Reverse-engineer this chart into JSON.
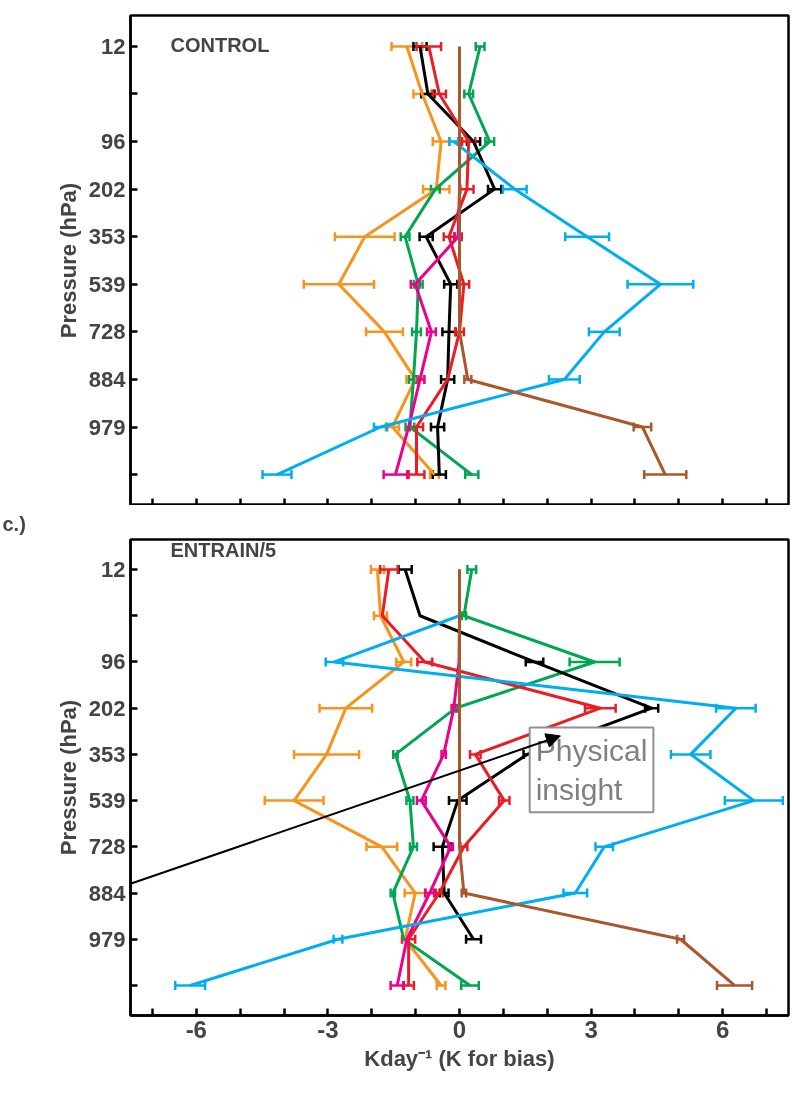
{
  "chart_data": [
    {
      "type": "line",
      "orientation": "horizontal",
      "title": "CONTROL",
      "ylabel": "Pressure (hPa)",
      "tick_labels": "y",
      "marker": "none",
      "line_style": "solid",
      "grid": false,
      "categories": [
        "12",
        null,
        "96",
        "202",
        "353",
        "539",
        "728",
        "884",
        "979",
        null
      ],
      "xlim": [
        -7.5,
        7.5
      ],
      "xticks": [
        {
          "value": -7,
          "label": null
        },
        {
          "value": -6,
          "label": null
        },
        {
          "value": -5,
          "label": null
        },
        {
          "value": -4,
          "label": null
        },
        {
          "value": -3,
          "label": null
        },
        {
          "value": -2,
          "label": null
        },
        {
          "value": -1,
          "label": null
        },
        {
          "value": 0,
          "label": null
        },
        {
          "value": 1,
          "label": null
        },
        {
          "value": 2,
          "label": null
        },
        {
          "value": 3,
          "label": null
        },
        {
          "value": 4,
          "label": null
        },
        {
          "value": 5,
          "label": null
        },
        {
          "value": 6,
          "label": null
        },
        {
          "value": 7,
          "label": null
        }
      ],
      "series": [
        {
          "color": "#f7941d",
          "values": [
            -1.2,
            -0.85,
            -0.42,
            -0.53,
            -2.16,
            -2.75,
            -1.71,
            -1.01,
            -1.53,
            -0.57
          ],
          "errors": [
            0.35,
            0.2,
            0.19,
            0.3,
            0.68,
            0.8,
            0.42,
            0.2,
            0.15,
            0.1
          ]
        },
        {
          "color": "#00a651",
          "values": [
            0.47,
            0.21,
            0.69,
            -0.55,
            -1.24,
            -0.94,
            -0.98,
            -1.05,
            -1.13,
            0.28
          ],
          "errors": [
            0.1,
            0.1,
            0.1,
            0.1,
            0.1,
            0.1,
            0.1,
            0.1,
            0.1,
            0.15
          ]
        },
        {
          "color": "#000000",
          "values": [
            -0.9,
            -0.72,
            0.32,
            0.8,
            -0.76,
            -0.2,
            -0.24,
            -0.27,
            -0.5,
            -0.46
          ],
          "errors": [
            0.15,
            0.15,
            0.15,
            0.15,
            0.15,
            0.15,
            0.15,
            0.15,
            0.15,
            0.15
          ]
        },
        {
          "color": "#ed1c24",
          "values": [
            -0.7,
            -0.46,
            0.21,
            0.17,
            -0.24,
            0.1,
            0.0,
            -0.27,
            -0.98,
            -0.98
          ],
          "errors": [
            0.28,
            0.15,
            0.15,
            0.15,
            0.12,
            0.12,
            0.1,
            null,
            0.15,
            0.18
          ]
        },
        {
          "color": "#ec008c",
          "values": [
            null,
            null,
            0,
            0,
            -0.03,
            -1.01,
            -0.64,
            -0.9,
            -1.16,
            -1.46
          ],
          "errors": [
            null,
            null,
            null,
            null,
            0.08,
            0.1,
            0.1,
            0.1,
            null,
            0.27
          ]
        },
        {
          "color": "#00aeef",
          "values": [
            null,
            null,
            -0.13,
            1.26,
            2.91,
            4.58,
            3.3,
            2.39,
            -1.8,
            -4.16
          ],
          "errors": [
            null,
            null,
            0.1,
            0.27,
            0.5,
            0.75,
            0.35,
            0.35,
            0.15,
            0.33
          ]
        },
        {
          "color": "#a9572c",
          "values": [
            0,
            0,
            0,
            0,
            0,
            0,
            0,
            0.19,
            4.17,
            4.69
          ],
          "errors": [
            null,
            null,
            null,
            null,
            null,
            null,
            null,
            0.08,
            0.2,
            0.48
          ]
        }
      ]
    },
    {
      "type": "line",
      "orientation": "horizontal",
      "title": "ENTRAIN/5",
      "ylabel": "Pressure (hPa)",
      "xlabel": "Kday⁻¹ (K for bias)",
      "marker": "none",
      "line_style": "solid",
      "grid": false,
      "annotations": [
        "c.)",
        "Physical insight"
      ],
      "categories": [
        "12",
        null,
        "96",
        "202",
        "353",
        "539",
        "728",
        "884",
        "979",
        null
      ],
      "xlim": [
        -7.5,
        7.5
      ],
      "xticks": [
        {
          "value": -7,
          "label": null
        },
        -6,
        {
          "value": -5,
          "label": null
        },
        {
          "value": -4,
          "label": null
        },
        -3,
        {
          "value": -2,
          "label": null
        },
        {
          "value": -1,
          "label": null
        },
        0,
        {
          "value": 1,
          "label": null
        },
        {
          "value": 2,
          "label": null
        },
        3,
        {
          "value": 4,
          "label": null
        },
        {
          "value": 5,
          "label": null
        },
        6,
        {
          "value": 7,
          "label": null
        }
      ],
      "series": [
        {
          "color": "#f7941d",
          "values": [
            -1.87,
            -1.8,
            -1.27,
            -2.59,
            -3.03,
            -3.77,
            -1.77,
            -1.01,
            -1.24,
            -0.42
          ],
          "errors": [
            0.15,
            0.15,
            0.17,
            0.6,
            0.74,
            0.67,
            0.35,
            0.24,
            null,
            0.1
          ]
        },
        {
          "color": "#00a651",
          "values": [
            0.28,
            0.1,
            3.08,
            -0.09,
            -1.46,
            -1.13,
            -1.05,
            -1.52,
            -1.27,
            0.24
          ],
          "errors": [
            0.1,
            0.05,
            0.57,
            0.05,
            0.05,
            0.08,
            0.08,
            0.05,
            null,
            0.2
          ]
        },
        {
          "color": "#000000",
          "values": [
            -1.24,
            -0.9,
            1.71,
            4.38,
            1.54,
            -0.04,
            -0.39,
            -0.35,
            0.32,
            null
          ],
          "errors": [
            0.15,
            null,
            0.2,
            0.15,
            0.08,
            0.2,
            0.2,
            0.1,
            0.17,
            null
          ]
        },
        {
          "color": "#ed1c24",
          "values": [
            -1.61,
            -1.76,
            -0.79,
            3.21,
            0.36,
            1.02,
            0.1,
            -0.46,
            -1.16,
            -1.16
          ],
          "errors": [
            0.2,
            null,
            0.17,
            0.35,
            0.12,
            0.12,
            0.08,
            0.08,
            0.15,
            0.12
          ]
        },
        {
          "color": "#ec008c",
          "values": [
            0,
            0,
            -0.01,
            -0.13,
            -0.36,
            -0.87,
            -0.2,
            -0.68,
            -1.2,
            -1.42
          ],
          "errors": [
            null,
            null,
            null,
            0.05,
            0.05,
            0.1,
            0.05,
            0.1,
            null,
            0.15
          ]
        },
        {
          "color": "#00aeef",
          "values": [
            null,
            0,
            -2.85,
            6.3,
            5.27,
            6.71,
            3.3,
            2.64,
            -2.77,
            -6.14
          ],
          "errors": [
            null,
            null,
            0.2,
            0.45,
            0.45,
            0.66,
            0.2,
            0.27,
            0.1,
            0.34
          ]
        },
        {
          "color": "#a9572c",
          "values": [
            0,
            0,
            0,
            0,
            0,
            0,
            0,
            0.1,
            5.04,
            6.27
          ],
          "errors": [
            null,
            null,
            null,
            null,
            null,
            null,
            null,
            0.05,
            0.08,
            0.4
          ]
        }
      ]
    }
  ]
}
